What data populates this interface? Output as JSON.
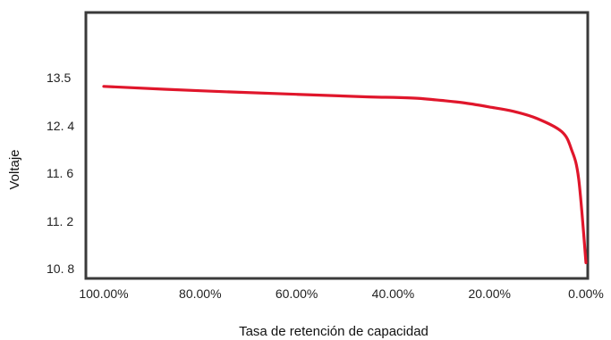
{
  "chart_data": {
    "type": "line",
    "title": "",
    "xlabel": "Tasa de retención de capacidad",
    "ylabel": "Voltaje",
    "x_tick_labels": [
      "100.00%",
      "80.00%",
      "60.00%",
      "40.00%",
      "20.00%",
      "0.00%"
    ],
    "x_tick_values": [
      100,
      80,
      60,
      40,
      20,
      0
    ],
    "y_tick_labels": [
      "13.5",
      "12. 4",
      "11. 6",
      "11. 2",
      "10. 8"
    ],
    "series": [
      {
        "color": "#e0162b",
        "points": [
          [
            100,
            13.3
          ],
          [
            80,
            13.2
          ],
          [
            60,
            13.12
          ],
          [
            45,
            13.06
          ],
          [
            40,
            13.05
          ],
          [
            35,
            13.03
          ],
          [
            30,
            12.98
          ],
          [
            25,
            12.92
          ],
          [
            20,
            12.83
          ],
          [
            15,
            12.73
          ],
          [
            10,
            12.56
          ],
          [
            5,
            12.3
          ],
          [
            3,
            12.0
          ],
          [
            1.5,
            11.55
          ],
          [
            0,
            10.85
          ]
        ]
      }
    ],
    "xlim": [
      100,
      0
    ],
    "grid": false,
    "legend": false
  }
}
